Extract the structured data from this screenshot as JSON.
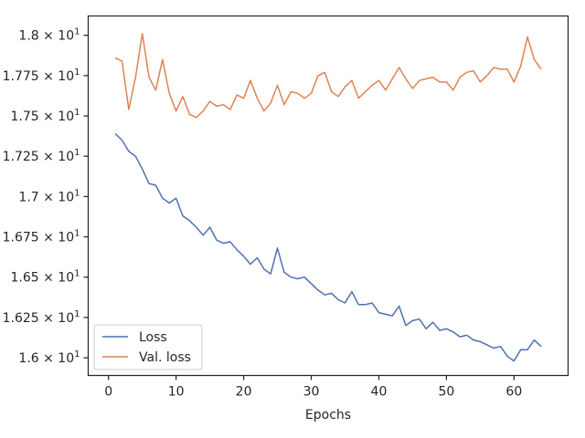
{
  "chart_data": {
    "type": "line",
    "title": "",
    "xlabel": "Epochs",
    "ylabel": "",
    "xlim": [
      -3,
      68
    ],
    "ylim": [
      15.89,
      18.12
    ],
    "grid": false,
    "legend_position": "lower-left",
    "x_ticks": [
      {
        "value": 0,
        "label": "0"
      },
      {
        "value": 10,
        "label": "10"
      },
      {
        "value": 20,
        "label": "20"
      },
      {
        "value": 30,
        "label": "30"
      },
      {
        "value": 40,
        "label": "40"
      },
      {
        "value": 50,
        "label": "50"
      },
      {
        "value": 60,
        "label": "60"
      }
    ],
    "y_ticks": [
      {
        "value": 16.0,
        "mantissa": "1.6",
        "exponent": "1"
      },
      {
        "value": 16.25,
        "mantissa": "1.625",
        "exponent": "1"
      },
      {
        "value": 16.5,
        "mantissa": "1.65",
        "exponent": "1"
      },
      {
        "value": 16.75,
        "mantissa": "1.675",
        "exponent": "1"
      },
      {
        "value": 17.0,
        "mantissa": "1.7",
        "exponent": "1"
      },
      {
        "value": 17.25,
        "mantissa": "1.725",
        "exponent": "1"
      },
      {
        "value": 17.5,
        "mantissa": "1.75",
        "exponent": "1"
      },
      {
        "value": 17.75,
        "mantissa": "1.775",
        "exponent": "1"
      },
      {
        "value": 18.0,
        "mantissa": "1.8",
        "exponent": "1"
      }
    ],
    "x": [
      1,
      2,
      3,
      4,
      5,
      6,
      7,
      8,
      9,
      10,
      11,
      12,
      13,
      14,
      15,
      16,
      17,
      18,
      19,
      20,
      21,
      22,
      23,
      24,
      25,
      26,
      27,
      28,
      29,
      30,
      31,
      32,
      33,
      34,
      35,
      36,
      37,
      38,
      39,
      40,
      41,
      42,
      43,
      44,
      45,
      46,
      47,
      48,
      49,
      50,
      51,
      52,
      53,
      54,
      55,
      56,
      57,
      58,
      59,
      60,
      61,
      62,
      63,
      64
    ],
    "series": [
      {
        "name": "Loss",
        "color": "#4c72b0",
        "values": [
          17.39,
          17.35,
          17.28,
          17.25,
          17.17,
          17.08,
          17.07,
          16.99,
          16.96,
          16.99,
          16.88,
          16.85,
          16.81,
          16.76,
          16.81,
          16.73,
          16.71,
          16.72,
          16.67,
          16.63,
          16.58,
          16.62,
          16.55,
          16.52,
          16.68,
          16.53,
          16.5,
          16.49,
          16.5,
          16.46,
          16.42,
          16.39,
          16.4,
          16.36,
          16.34,
          16.41,
          16.33,
          16.33,
          16.34,
          16.28,
          16.27,
          16.26,
          16.32,
          16.2,
          16.23,
          16.24,
          16.18,
          16.22,
          16.17,
          16.18,
          16.16,
          16.13,
          16.14,
          16.11,
          16.1,
          16.08,
          16.06,
          16.07,
          16.01,
          15.98,
          16.05,
          16.05,
          16.11,
          16.07
        ]
      },
      {
        "name": "Val. loss",
        "color": "#dd8452",
        "values": [
          17.86,
          17.84,
          17.54,
          17.74,
          18.01,
          17.74,
          17.66,
          17.85,
          17.64,
          17.53,
          17.62,
          17.51,
          17.49,
          17.53,
          17.59,
          17.56,
          17.57,
          17.54,
          17.63,
          17.61,
          17.72,
          17.61,
          17.53,
          17.58,
          17.69,
          17.57,
          17.65,
          17.64,
          17.61,
          17.64,
          17.75,
          17.77,
          17.65,
          17.62,
          17.68,
          17.72,
          17.61,
          17.65,
          17.69,
          17.72,
          17.66,
          17.73,
          17.8,
          17.73,
          17.67,
          17.72,
          17.73,
          17.74,
          17.71,
          17.71,
          17.66,
          17.74,
          17.77,
          17.78,
          17.71,
          17.75,
          17.8,
          17.79,
          17.79,
          17.71,
          17.81,
          17.99,
          17.85,
          17.79
        ]
      }
    ]
  }
}
